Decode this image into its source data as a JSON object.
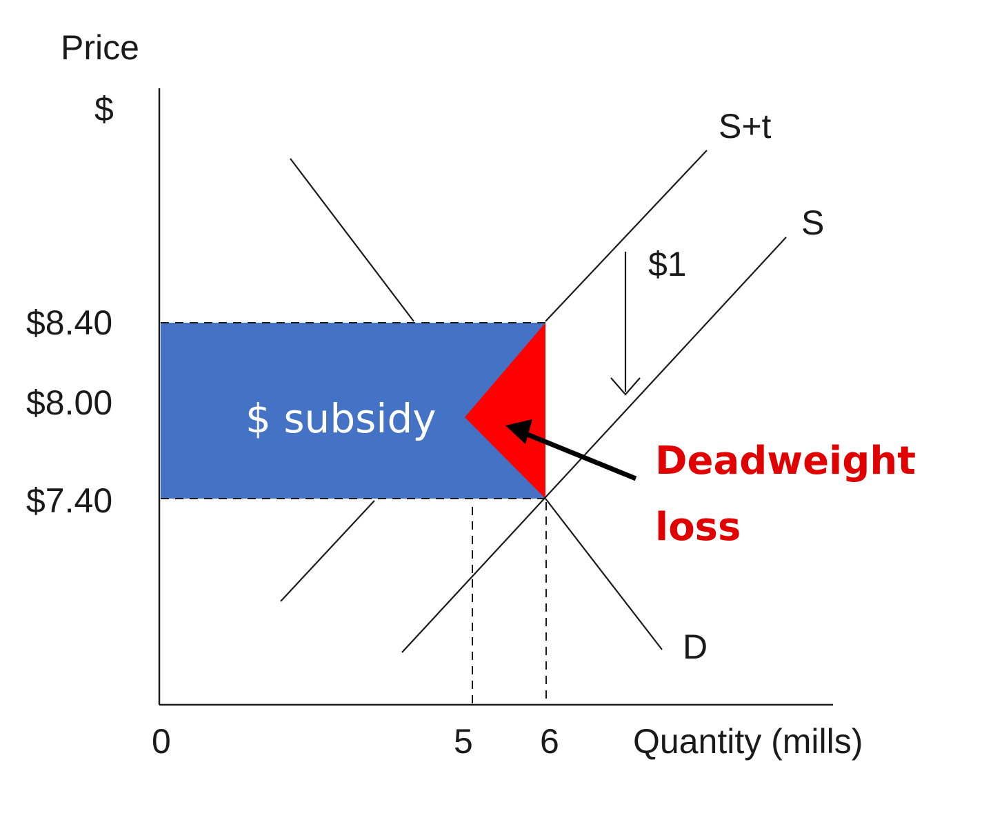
{
  "axes": {
    "y_label_line1": "Price",
    "y_label_line2": "$",
    "x_label": "Quantity (mills)",
    "origin": "0"
  },
  "price_ticks": [
    "$8.40",
    "$8.00",
    "$7.40"
  ],
  "quantity_ticks": [
    "5",
    "6"
  ],
  "curves": {
    "supply_plus_tax": "S+t",
    "supply": "S",
    "demand": "D"
  },
  "shift_label": "$1",
  "subsidy_label": "$ subsidy",
  "deadweight_label_line1": "Deadweight",
  "deadweight_label_line2": "loss",
  "colors": {
    "subsidy_fill": "#4472c4",
    "deadweight_fill": "#ff0000",
    "deadweight_text": "#e00000",
    "axis": "#1a1a1a"
  }
}
